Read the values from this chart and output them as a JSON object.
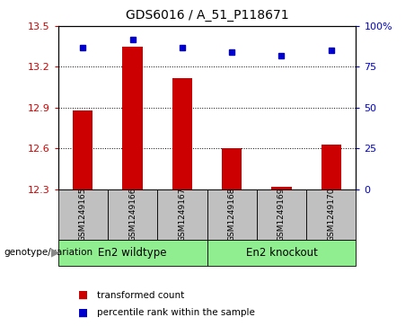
{
  "title": "GDS6016 / A_51_P118671",
  "samples": [
    "GSM1249165",
    "GSM1249166",
    "GSM1249167",
    "GSM1249168",
    "GSM1249169",
    "GSM1249170"
  ],
  "bar_values": [
    12.88,
    13.35,
    13.12,
    12.6,
    12.32,
    12.63
  ],
  "percentile_values": [
    87,
    92,
    87,
    84,
    82,
    85
  ],
  "bar_color": "#cc0000",
  "percentile_color": "#0000cc",
  "ylim": [
    12.3,
    13.5
  ],
  "yticks": [
    12.3,
    12.6,
    12.9,
    13.2,
    13.5
  ],
  "y2lim": [
    0,
    100
  ],
  "y2ticks": [
    0,
    25,
    50,
    75,
    100
  ],
  "y2ticklabels": [
    "0",
    "25",
    "50",
    "75",
    "100%"
  ],
  "bar_bottom": 12.3,
  "legend_red": "transformed count",
  "legend_blue": "percentile rank within the sample",
  "genotype_label": "genotype/variation",
  "group1_label": "En2 wildtype",
  "group2_label": "En2 knockout",
  "group_bg_color": "#c0c0c0",
  "group_label_color": "#90EE90",
  "bar_width": 0.4
}
